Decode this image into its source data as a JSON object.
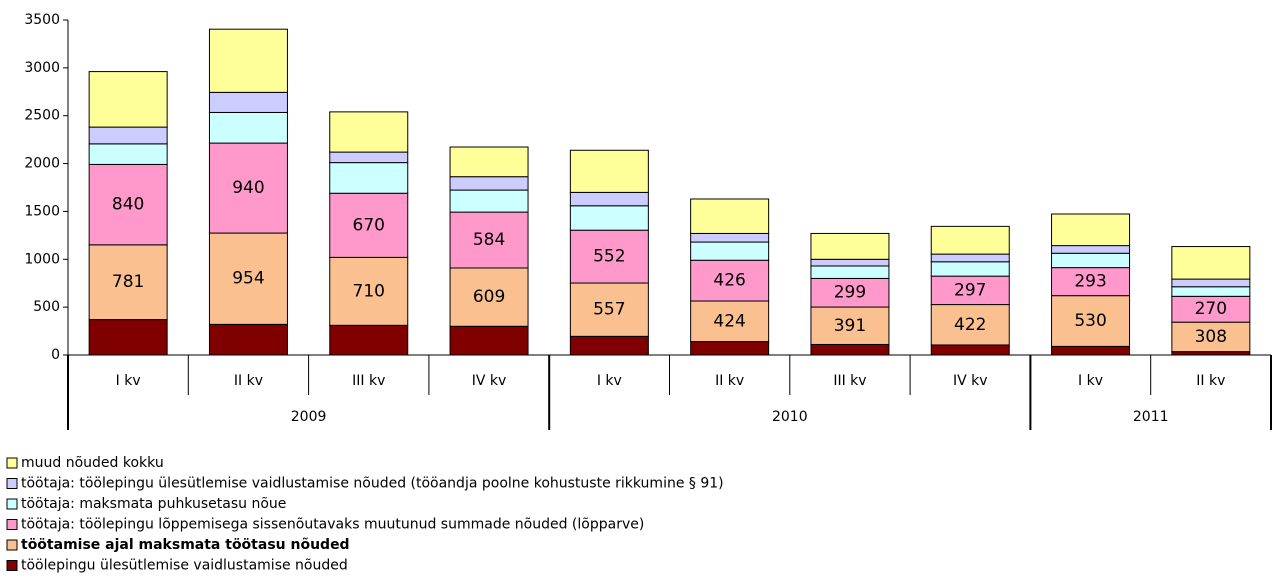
{
  "chart_data": {
    "type": "stacked_bar",
    "categories": [
      "I kv",
      "II kv",
      "III kv",
      "IV kv",
      "I kv",
      "II kv",
      "III kv",
      "IV kv",
      "I kv",
      "II kv"
    ],
    "groups": [
      {
        "label": "2009",
        "count": 4
      },
      {
        "label": "2010",
        "count": 4
      },
      {
        "label": "2011",
        "count": 2
      }
    ],
    "ylim": [
      0,
      3500
    ],
    "yticks": [
      0,
      500,
      1000,
      1500,
      2000,
      2500,
      3000,
      3500
    ],
    "series": [
      {
        "name": "töölepingu ülesütlemise vaidlustamise nõuded",
        "color": "#800000",
        "values": [
          370,
          320,
          310,
          300,
          195,
          140,
          110,
          105,
          90,
          35
        ]
      },
      {
        "name": "töötamise ajal maksmata töötasu nõuded",
        "color": "#fac090",
        "bold": true,
        "show_labels": true,
        "values": [
          781,
          954,
          710,
          609,
          557,
          424,
          391,
          422,
          530,
          308
        ]
      },
      {
        "name": "töötaja: töölepingu lõppemisega sissenõutavaks muutunud summade nõuded (lõpparve)",
        "color": "#ff99cc",
        "show_labels": true,
        "values": [
          840,
          940,
          670,
          584,
          552,
          426,
          299,
          297,
          293,
          270
        ]
      },
      {
        "name": "töötaja: maksmata puhkusetasu nõue",
        "color": "#ccffff",
        "values": [
          215,
          320,
          320,
          230,
          255,
          190,
          130,
          150,
          150,
          100
        ]
      },
      {
        "name": "töötaja: töölepingu ülesütlemise vaidlustamise nõuded (tööandja poolne kohustuste rikkumine § 91)",
        "color": "#ccccff",
        "values": [
          175,
          210,
          110,
          140,
          140,
          90,
          70,
          80,
          80,
          80
        ]
      },
      {
        "name": "muud nõuded kokku",
        "color": "#ffff99",
        "values": [
          580,
          660,
          420,
          310,
          440,
          360,
          270,
          290,
          330,
          340
        ]
      }
    ]
  }
}
